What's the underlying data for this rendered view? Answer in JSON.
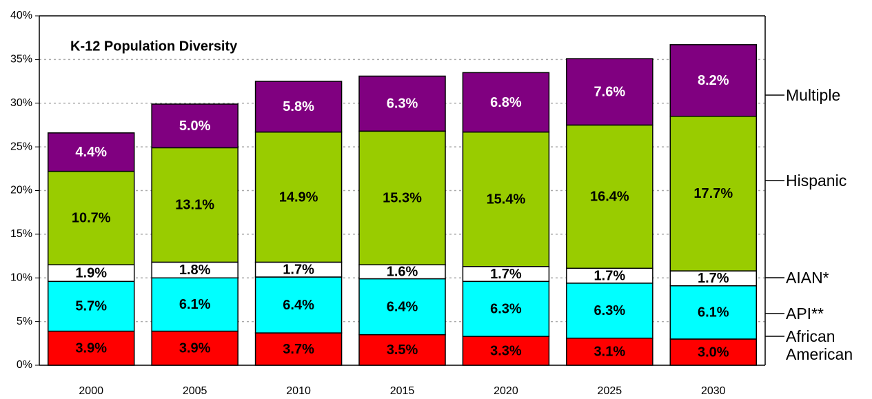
{
  "chart_data": {
    "type": "stacked_bar",
    "title": "K-12 Population Diversity",
    "categories": [
      "2000",
      "2005",
      "2010",
      "2015",
      "2020",
      "2025",
      "2030"
    ],
    "series": [
      {
        "name": "African American",
        "color": "#ff0000",
        "label_color": "#000000",
        "values": [
          3.9,
          3.9,
          3.7,
          3.5,
          3.3,
          3.1,
          3.0
        ],
        "value_labels": [
          "3.9%",
          "3.9%",
          "3.7%",
          "3.5%",
          "3.3%",
          "3.1%",
          "3.0%"
        ]
      },
      {
        "name": "API**",
        "color": "#00ffff",
        "label_color": "#000000",
        "values": [
          5.7,
          6.1,
          6.4,
          6.4,
          6.3,
          6.3,
          6.1
        ],
        "value_labels": [
          "5.7%",
          "6.1%",
          "6.4%",
          "6.4%",
          "6.3%",
          "6.3%",
          "6.1%"
        ]
      },
      {
        "name": "AIAN*",
        "color": "#ffffff",
        "label_color": "#000000",
        "values": [
          1.9,
          1.8,
          1.7,
          1.6,
          1.7,
          1.7,
          1.7
        ],
        "value_labels": [
          "1.9%",
          "1.8%",
          "1.7%",
          "1.6%",
          "1.7%",
          "1.7%",
          "1.7%"
        ]
      },
      {
        "name": "Hispanic",
        "color": "#99cc00",
        "label_color": "#000000",
        "values": [
          10.7,
          13.1,
          14.9,
          15.3,
          15.4,
          16.4,
          17.7
        ],
        "value_labels": [
          "10.7%",
          "13.1%",
          "14.9%",
          "15.3%",
          "15.4%",
          "16.4%",
          "17.7%"
        ]
      },
      {
        "name": "Multiple",
        "color": "#800080",
        "label_color": "#ffffff",
        "values": [
          4.4,
          5.0,
          5.8,
          6.3,
          6.8,
          7.6,
          8.2
        ],
        "value_labels": [
          "4.4%",
          "5.0%",
          "5.8%",
          "6.3%",
          "6.8%",
          "7.6%",
          "8.2%"
        ]
      }
    ],
    "ylim": [
      0,
      40
    ],
    "yticks": [
      {
        "value": 0,
        "label": "0%"
      },
      {
        "value": 5,
        "label": "5%"
      },
      {
        "value": 10,
        "label": "10%"
      },
      {
        "value": 15,
        "label": "15%"
      },
      {
        "value": 20,
        "label": "20%"
      },
      {
        "value": 25,
        "label": "25%"
      },
      {
        "value": 30,
        "label": "30%"
      },
      {
        "value": 35,
        "label": "35%"
      },
      {
        "value": 40,
        "label": "40%"
      }
    ],
    "grid": true
  }
}
